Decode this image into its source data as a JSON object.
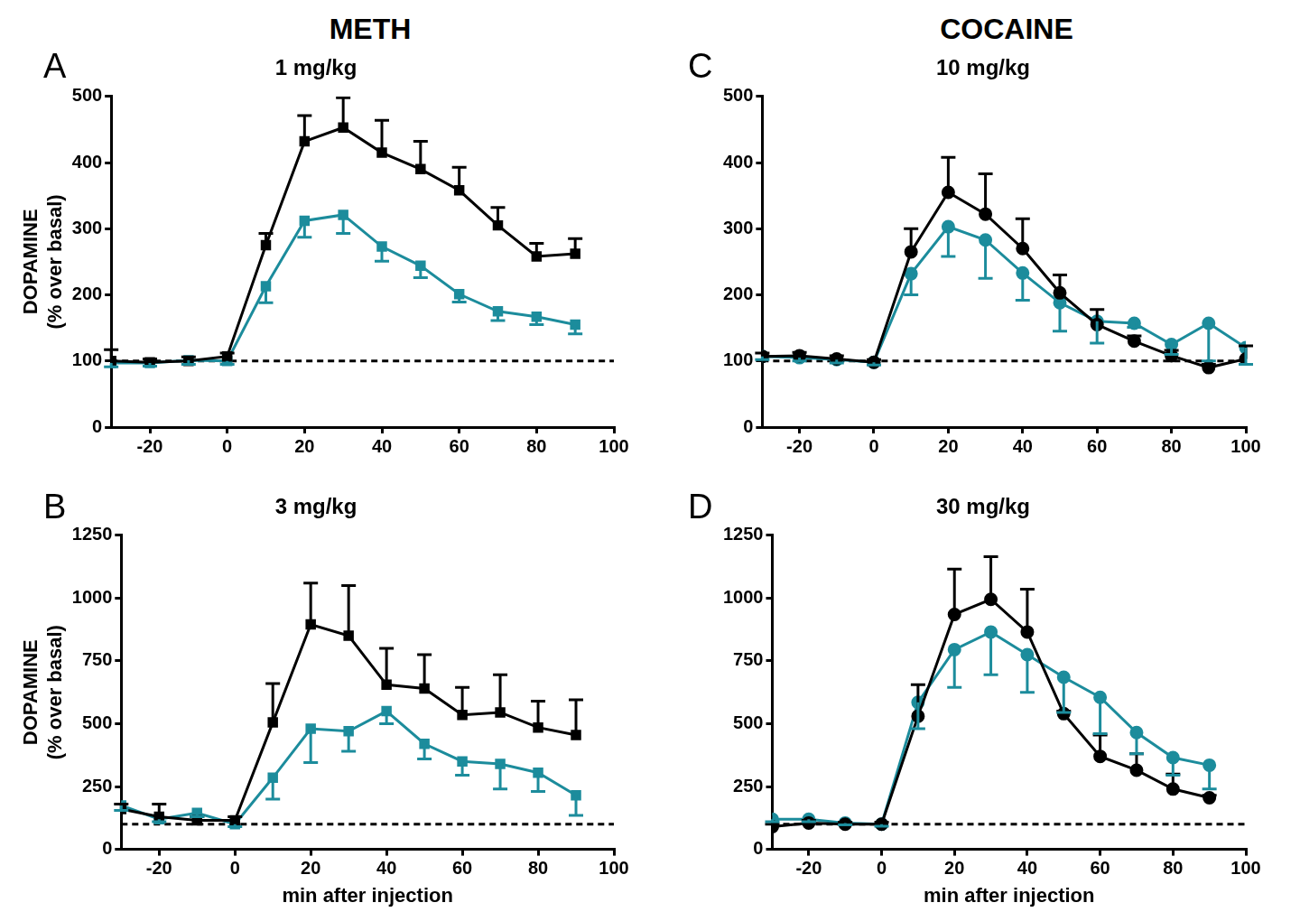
{
  "column_titles": [
    "METH",
    "COCAINE"
  ],
  "chart_data": [
    {
      "type": "line",
      "panel": "A",
      "title": "1 mg/kg",
      "y_label": [
        "DOPAMINE",
        "(% over basal)"
      ],
      "x": [
        -30,
        -20,
        -10,
        0,
        10,
        20,
        30,
        40,
        50,
        60,
        70,
        80,
        90
      ],
      "xlim": [
        -30,
        100
      ],
      "xticks": [
        -20,
        0,
        20,
        40,
        60,
        80,
        100
      ],
      "ylim": [
        0,
        500
      ],
      "yticks": [
        0,
        100,
        200,
        300,
        400,
        500
      ],
      "grid": false,
      "reference_line": 100,
      "series": [
        {
          "color": "#000000",
          "marker": "square",
          "line_style": "solid",
          "values": [
            100,
            98,
            100,
            107,
            275,
            432,
            453,
            415,
            390,
            358,
            305,
            258,
            262
          ],
          "errors_up": [
            17,
            5,
            6,
            5,
            18,
            39,
            45,
            49,
            42,
            35,
            27,
            20,
            23
          ]
        },
        {
          "color": "#1c8c9c",
          "marker": "square",
          "line_style": "solid",
          "values": [
            97,
            97,
            101,
            100,
            213,
            312,
            321,
            273,
            244,
            201,
            175,
            167,
            155
          ],
          "errors_down": [
            6,
            5,
            6,
            5,
            25,
            25,
            28,
            22,
            18,
            12,
            14,
            12,
            14
          ]
        }
      ]
    },
    {
      "type": "line",
      "panel": "B",
      "title": "3 mg/kg",
      "y_label": [
        "DOPAMINE",
        "(% over basal)"
      ],
      "x_label": "min after injection",
      "x": [
        -30,
        -20,
        -10,
        0,
        10,
        20,
        30,
        40,
        50,
        60,
        70,
        80,
        90
      ],
      "xlim": [
        -30,
        100
      ],
      "xticks": [
        -20,
        0,
        20,
        40,
        60,
        80,
        100
      ],
      "ylim": [
        0,
        1250
      ],
      "yticks": [
        0,
        250,
        500,
        750,
        1000,
        1250
      ],
      "grid": false,
      "reference_line": 100,
      "series": [
        {
          "color": "#000000",
          "marker": "square",
          "line_style": "solid",
          "values": [
            160,
            130,
            115,
            115,
            505,
            895,
            850,
            655,
            640,
            535,
            545,
            485,
            455
          ],
          "errors_up": [
            20,
            50,
            15,
            15,
            155,
            165,
            200,
            145,
            135,
            110,
            150,
            105,
            140
          ]
        },
        {
          "color": "#1c8c9c",
          "marker": "square",
          "line_style": "solid",
          "values": [
            175,
            120,
            145,
            100,
            285,
            480,
            470,
            550,
            420,
            350,
            340,
            305,
            215
          ],
          "errors_down": [
            20,
            10,
            15,
            10,
            85,
            135,
            80,
            50,
            60,
            55,
            100,
            75,
            80
          ]
        }
      ]
    },
    {
      "type": "line",
      "panel": "C",
      "title": "10 mg/kg",
      "x": [
        -30,
        -20,
        -10,
        0,
        10,
        20,
        30,
        40,
        50,
        60,
        70,
        80,
        90,
        100
      ],
      "xlim": [
        -30,
        100
      ],
      "xticks": [
        -20,
        0,
        20,
        40,
        60,
        80,
        100
      ],
      "ylim": [
        0,
        500
      ],
      "yticks": [
        0,
        100,
        200,
        300,
        400,
        500
      ],
      "grid": false,
      "reference_line": 100,
      "series": [
        {
          "color": "#000000",
          "marker": "circle",
          "line_style": "solid",
          "values": [
            107,
            108,
            103,
            98,
            265,
            355,
            322,
            270,
            203,
            155,
            130,
            108,
            90,
            103
          ],
          "errors_up": [
            5,
            5,
            5,
            4,
            35,
            53,
            61,
            45,
            27,
            23,
            8,
            8,
            5,
            20
          ]
        },
        {
          "color": "#1c8c9c",
          "marker": "circle",
          "line_style": "solid",
          "values": [
            107,
            105,
            102,
            98,
            232,
            303,
            283,
            233,
            188,
            160,
            157,
            125,
            157,
            120
          ],
          "errors_down": [
            5,
            5,
            5,
            4,
            32,
            45,
            58,
            41,
            43,
            33,
            6,
            15,
            57,
            25
          ]
        }
      ]
    },
    {
      "type": "line",
      "panel": "D",
      "title": "30 mg/kg",
      "x_label": "min after injection",
      "x": [
        -30,
        -20,
        -10,
        0,
        10,
        20,
        30,
        40,
        50,
        60,
        70,
        80,
        90
      ],
      "xlim": [
        -30,
        100
      ],
      "xticks": [
        -20,
        0,
        20,
        40,
        60,
        80,
        100
      ],
      "ylim": [
        0,
        1250
      ],
      "yticks": [
        0,
        250,
        500,
        750,
        1000,
        1250
      ],
      "grid": false,
      "reference_line": 100,
      "series": [
        {
          "color": "#000000",
          "marker": "circle",
          "line_style": "solid",
          "values": [
            90,
            105,
            100,
            100,
            530,
            935,
            995,
            865,
            540,
            370,
            315,
            240,
            205
          ],
          "errors_up": [
            10,
            10,
            8,
            8,
            125,
            180,
            170,
            170,
            10,
            85,
            65,
            60,
            10
          ]
        },
        {
          "color": "#1c8c9c",
          "marker": "circle",
          "line_style": "solid",
          "values": [
            120,
            120,
            105,
            100,
            585,
            795,
            865,
            775,
            685,
            605,
            465,
            365,
            335
          ],
          "errors_down": [
            10,
            10,
            8,
            8,
            105,
            150,
            170,
            150,
            140,
            145,
            85,
            70,
            95
          ]
        }
      ]
    }
  ]
}
